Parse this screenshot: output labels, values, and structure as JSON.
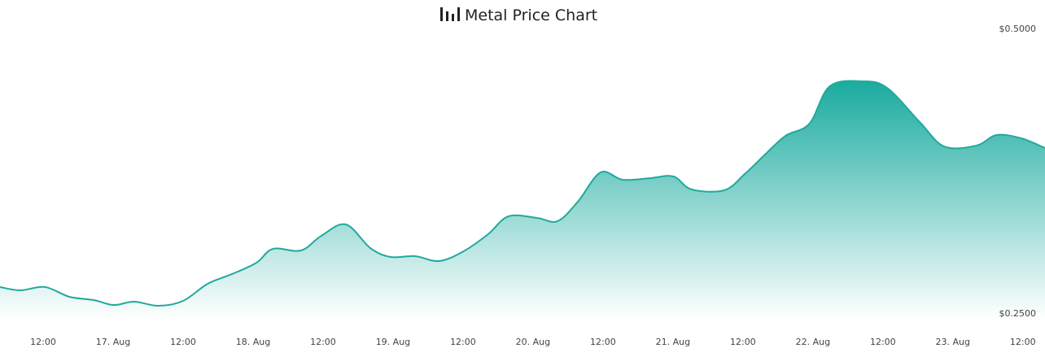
{
  "chart_data": {
    "type": "area",
    "title": "Metal Price Chart",
    "color": "#20a99c",
    "x": [
      4.6,
      8.1,
      12.3,
      16.5,
      20.7,
      24.1,
      27.6,
      31.8,
      36.0,
      40.2,
      44.4,
      48.6,
      51.4,
      56.2,
      59.7,
      63.9,
      68.1,
      71.6,
      75.8,
      79.9,
      84.1,
      88.3,
      91.8,
      96.7,
      100.2,
      103.7,
      107.6,
      111.4,
      116.2,
      120.1,
      123.2,
      128.8,
      132.3,
      135.8,
      139.3,
      143.4,
      146.9,
      152.5,
      156.7,
      162.3,
      166.5,
      172.0,
      175.5,
      179.7,
      183.8
    ],
    "values": [
      0.2729,
      0.27,
      0.2729,
      0.2643,
      0.2614,
      0.2571,
      0.26,
      0.2564,
      0.2607,
      0.2757,
      0.2843,
      0.2943,
      0.3064,
      0.305,
      0.3179,
      0.3279,
      0.3071,
      0.2993,
      0.3,
      0.2957,
      0.3043,
      0.3193,
      0.335,
      0.3336,
      0.3307,
      0.3479,
      0.3736,
      0.3671,
      0.3686,
      0.37,
      0.3586,
      0.3579,
      0.3721,
      0.3893,
      0.4057,
      0.4164,
      0.4493,
      0.4536,
      0.4479,
      0.4179,
      0.3964,
      0.3971,
      0.4064,
      0.4036,
      0.395
    ],
    "xlim": [
      4.6,
      183.8
    ],
    "xticks": [
      {
        "value": 12,
        "label": "12:00"
      },
      {
        "value": 24,
        "label": "17. Aug"
      },
      {
        "value": 36,
        "label": "12:00"
      },
      {
        "value": 48,
        "label": "18. Aug"
      },
      {
        "value": 60,
        "label": "12:00"
      },
      {
        "value": 72,
        "label": "19. Aug"
      },
      {
        "value": 84,
        "label": "12:00"
      },
      {
        "value": 96,
        "label": "20. Aug"
      },
      {
        "value": 108,
        "label": "12:00"
      },
      {
        "value": 120,
        "label": "21. Aug"
      },
      {
        "value": 132,
        "label": "12:00"
      },
      {
        "value": 144,
        "label": "22. Aug"
      },
      {
        "value": 156,
        "label": "12:00"
      },
      {
        "value": 168,
        "label": "23. Aug"
      },
      {
        "value": 180,
        "label": "12:00"
      }
    ],
    "ylim": [
      0.25,
      0.5
    ],
    "yticks": [
      {
        "value": 0.25,
        "label": "$0.2500"
      },
      {
        "value": 0.5,
        "label": "$0.5000"
      }
    ]
  }
}
